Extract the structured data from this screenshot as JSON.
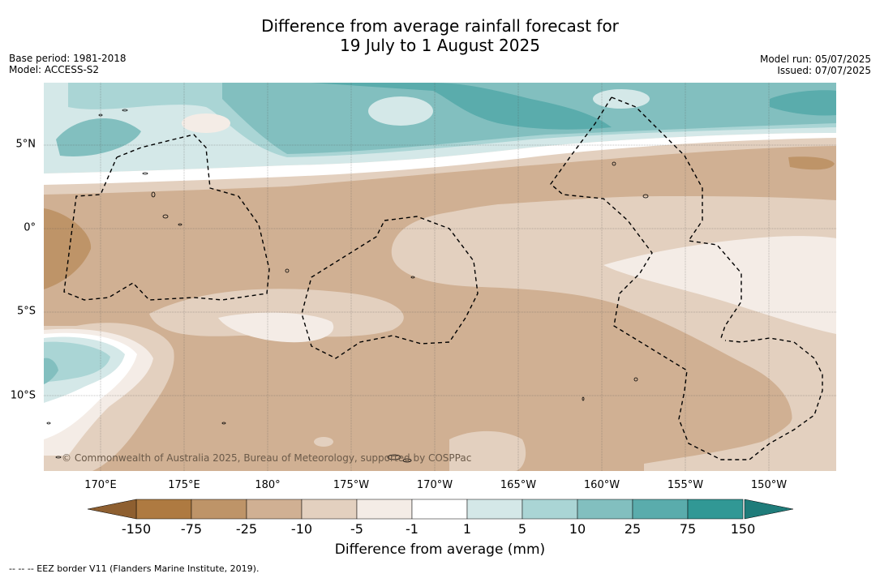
{
  "title": {
    "line1": "Difference from average rainfall forecast for",
    "line2": "19 July to 1 August 2025"
  },
  "meta": {
    "base_period": "Base period: 1981-2018",
    "model": "Model: ACCESS-S2",
    "model_run": "Model run: 05/07/2025",
    "issued": "Issued: 07/07/2025"
  },
  "map": {
    "copyright": "© Commonwealth of Australia 2025, Bureau of Meteorology, supported by COSPPac",
    "lon_labels": [
      "170°E",
      "175°E",
      "180°",
      "175°W",
      "170°W",
      "165°W",
      "160°W",
      "155°W",
      "150°W"
    ],
    "lat_labels": [
      "5°N",
      "0°",
      "5°S",
      "10°S"
    ]
  },
  "colorbar": {
    "label": "Difference from average (mm)",
    "ticks": [
      "-150",
      "-75",
      "-25",
      "-10",
      "-5",
      "-1",
      "1",
      "5",
      "10",
      "25",
      "75",
      "150"
    ],
    "colors": {
      "below_min": "#8e5f30",
      "bins": [
        "#ae7a41",
        "#be9468",
        "#d0b093",
        "#e3d0bf",
        "#f4ece6",
        "#ffffff",
        "#d4e8e8",
        "#aad5d5",
        "#82bfbf",
        "#5aacac",
        "#319895"
      ],
      "above_max": "#1f7c7a"
    }
  },
  "footer": {
    "eez": "--  --  -- EEZ border V11 (Flanders Marine Institute, 2019)."
  }
}
